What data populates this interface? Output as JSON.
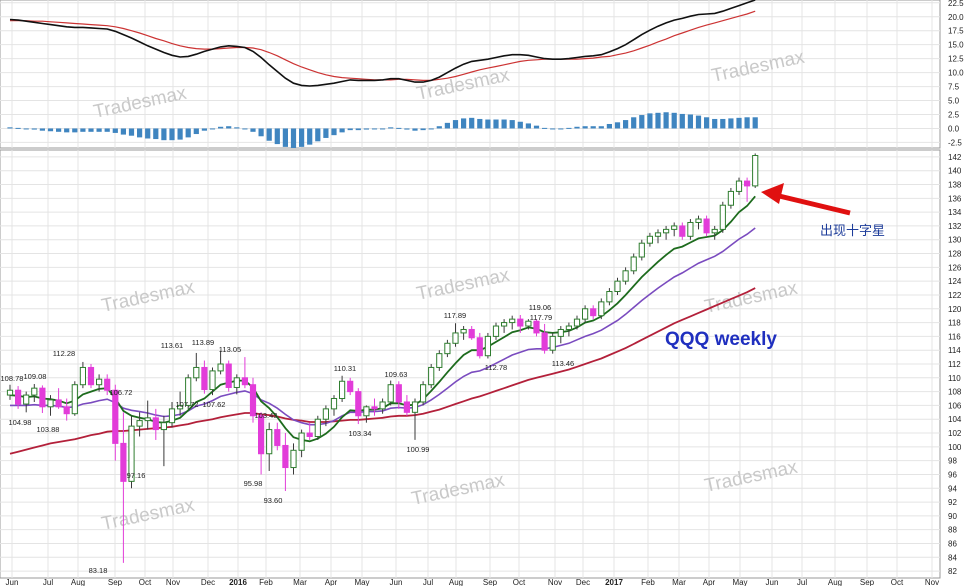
{
  "chart_data": {
    "type": "candlestick",
    "title": "QQQ weekly",
    "annotation": "出现十字星",
    "watermark": "Tradesmax",
    "colors": {
      "up_candle": "#2f7d2f",
      "down_candle": "#e23cd9",
      "ma_short": "#1d6b1d",
      "ma_mid": "#7a4bbf",
      "ma_long": "#b3203a",
      "macd_line": "#111111",
      "signal_line": "#cc3333",
      "histogram": "#3f85c0",
      "arrow": "#e01010"
    },
    "x_tick_labels": [
      "Jun",
      "Jul",
      "Aug",
      "Sep",
      "Oct",
      "Nov",
      "Dec",
      "2016",
      "Feb",
      "Mar",
      "Apr",
      "May",
      "Jun",
      "Jul",
      "Aug",
      "Sep",
      "Oct",
      "Nov",
      "Dec",
      "2017",
      "Feb",
      "Mar",
      "Apr",
      "May",
      "Jun",
      "Jul",
      "Aug",
      "Sep",
      "Oct",
      "Nov"
    ],
    "price_axis": {
      "ylim": [
        81,
        143
      ],
      "ticks": [
        82,
        84,
        86,
        88,
        90,
        92,
        94,
        96,
        98,
        100,
        102,
        104,
        106,
        108,
        110,
        112,
        114,
        116,
        118,
        120,
        122,
        124,
        126,
        128,
        130,
        132,
        134,
        136,
        138,
        140,
        142
      ]
    },
    "indicator_axis": {
      "ylim": [
        -3.5,
        23
      ],
      "ticks": [
        -2.5,
        0.0,
        2.5,
        5.0,
        7.5,
        10.0,
        12.5,
        15.0,
        17.5,
        20.0,
        22.5
      ]
    },
    "price_labels": [
      "108.78",
      "109.08",
      "104.98",
      "103.88",
      "112.28",
      "106.72",
      "97.16",
      "83.18",
      "113.61",
      "113.89",
      "113.05",
      "107.72",
      "107.62",
      "103.43",
      "95.98",
      "93.60",
      "110.31",
      "109.63",
      "103.34",
      "100.99",
      "117.89",
      "112.78",
      "119.06",
      "117.79",
      "113.46"
    ],
    "candles": [
      {
        "o": 107.5,
        "h": 109.0,
        "l": 106.8,
        "c": 108.2
      },
      {
        "o": 108.2,
        "h": 108.8,
        "l": 105.5,
        "c": 106.2
      },
      {
        "o": 106.2,
        "h": 108.0,
        "l": 105.0,
        "c": 107.5
      },
      {
        "o": 107.5,
        "h": 109.1,
        "l": 106.5,
        "c": 108.5
      },
      {
        "o": 108.5,
        "h": 108.9,
        "l": 104.9,
        "c": 105.8
      },
      {
        "o": 105.8,
        "h": 107.5,
        "l": 104.5,
        "c": 106.8
      },
      {
        "o": 106.8,
        "h": 108.5,
        "l": 105.5,
        "c": 105.8
      },
      {
        "o": 105.8,
        "h": 107.0,
        "l": 103.8,
        "c": 104.8
      },
      {
        "o": 104.8,
        "h": 109.5,
        "l": 104.5,
        "c": 109.0
      },
      {
        "o": 109.0,
        "h": 112.3,
        "l": 108.5,
        "c": 111.5
      },
      {
        "o": 111.5,
        "h": 112.0,
        "l": 108.5,
        "c": 109.0
      },
      {
        "o": 109.0,
        "h": 110.5,
        "l": 108.0,
        "c": 109.8
      },
      {
        "o": 109.8,
        "h": 110.5,
        "l": 107.5,
        "c": 108.2
      },
      {
        "o": 108.2,
        "h": 109.0,
        "l": 98.0,
        "c": 100.5
      },
      {
        "o": 100.5,
        "h": 105.0,
        "l": 83.2,
        "c": 95.0
      },
      {
        "o": 95.0,
        "h": 104.5,
        "l": 94.0,
        "c": 103.0
      },
      {
        "o": 103.0,
        "h": 105.0,
        "l": 101.5,
        "c": 103.8
      },
      {
        "o": 103.8,
        "h": 106.7,
        "l": 102.5,
        "c": 104.2
      },
      {
        "o": 104.2,
        "h": 105.5,
        "l": 101.0,
        "c": 102.5
      },
      {
        "o": 102.5,
        "h": 104.5,
        "l": 97.2,
        "c": 103.5
      },
      {
        "o": 103.5,
        "h": 106.5,
        "l": 102.8,
        "c": 105.5
      },
      {
        "o": 105.5,
        "h": 108.0,
        "l": 104.5,
        "c": 106.0
      },
      {
        "o": 106.0,
        "h": 110.5,
        "l": 105.5,
        "c": 110.0
      },
      {
        "o": 110.0,
        "h": 113.6,
        "l": 109.5,
        "c": 111.5
      },
      {
        "o": 111.5,
        "h": 112.5,
        "l": 107.7,
        "c": 108.3
      },
      {
        "o": 108.3,
        "h": 111.5,
        "l": 107.5,
        "c": 111.0
      },
      {
        "o": 111.0,
        "h": 113.9,
        "l": 110.5,
        "c": 112.0
      },
      {
        "o": 112.0,
        "h": 112.5,
        "l": 108.0,
        "c": 108.6
      },
      {
        "o": 108.6,
        "h": 110.5,
        "l": 107.6,
        "c": 110.0
      },
      {
        "o": 110.0,
        "h": 113.0,
        "l": 108.5,
        "c": 109.0
      },
      {
        "o": 109.0,
        "h": 110.0,
        "l": 103.5,
        "c": 104.5
      },
      {
        "o": 104.5,
        "h": 105.0,
        "l": 96.0,
        "c": 99.0
      },
      {
        "o": 99.0,
        "h": 103.5,
        "l": 96.5,
        "c": 102.5
      },
      {
        "o": 102.5,
        "h": 103.5,
        "l": 99.5,
        "c": 100.2
      },
      {
        "o": 100.2,
        "h": 102.0,
        "l": 93.6,
        "c": 97.0
      },
      {
        "o": 97.0,
        "h": 100.5,
        "l": 96.0,
        "c": 99.5
      },
      {
        "o": 99.5,
        "h": 102.5,
        "l": 98.5,
        "c": 102.0
      },
      {
        "o": 102.0,
        "h": 103.5,
        "l": 101.0,
        "c": 101.5
      },
      {
        "o": 101.5,
        "h": 104.5,
        "l": 101.0,
        "c": 104.0
      },
      {
        "o": 104.0,
        "h": 106.0,
        "l": 103.0,
        "c": 105.5
      },
      {
        "o": 105.5,
        "h": 107.5,
        "l": 104.5,
        "c": 107.0
      },
      {
        "o": 107.0,
        "h": 110.3,
        "l": 106.5,
        "c": 109.5
      },
      {
        "o": 109.5,
        "h": 110.0,
        "l": 107.5,
        "c": 108.0
      },
      {
        "o": 108.0,
        "h": 108.5,
        "l": 103.3,
        "c": 104.5
      },
      {
        "o": 104.5,
        "h": 106.0,
        "l": 103.5,
        "c": 105.8
      },
      {
        "o": 105.8,
        "h": 107.0,
        "l": 104.5,
        "c": 105.5
      },
      {
        "o": 105.5,
        "h": 107.0,
        "l": 104.8,
        "c": 106.5
      },
      {
        "o": 106.5,
        "h": 109.6,
        "l": 106.0,
        "c": 109.0
      },
      {
        "o": 109.0,
        "h": 109.5,
        "l": 105.5,
        "c": 106.5
      },
      {
        "o": 106.5,
        "h": 107.5,
        "l": 104.5,
        "c": 105.0
      },
      {
        "o": 105.0,
        "h": 107.0,
        "l": 101.0,
        "c": 106.5
      },
      {
        "o": 106.5,
        "h": 109.5,
        "l": 106.0,
        "c": 109.0
      },
      {
        "o": 109.0,
        "h": 112.0,
        "l": 108.5,
        "c": 111.5
      },
      {
        "o": 111.5,
        "h": 114.0,
        "l": 111.0,
        "c": 113.5
      },
      {
        "o": 113.5,
        "h": 115.5,
        "l": 113.0,
        "c": 115.0
      },
      {
        "o": 115.0,
        "h": 117.9,
        "l": 114.5,
        "c": 116.5
      },
      {
        "o": 116.5,
        "h": 117.5,
        "l": 115.5,
        "c": 117.0
      },
      {
        "o": 117.0,
        "h": 117.5,
        "l": 115.5,
        "c": 115.8
      },
      {
        "o": 115.8,
        "h": 116.5,
        "l": 112.8,
        "c": 113.2
      },
      {
        "o": 113.2,
        "h": 116.5,
        "l": 112.8,
        "c": 116.0
      },
      {
        "o": 116.0,
        "h": 118.0,
        "l": 115.5,
        "c": 117.5
      },
      {
        "o": 117.5,
        "h": 118.5,
        "l": 116.5,
        "c": 118.0
      },
      {
        "o": 118.0,
        "h": 119.0,
        "l": 117.0,
        "c": 118.5
      },
      {
        "o": 118.5,
        "h": 119.1,
        "l": 116.5,
        "c": 117.5
      },
      {
        "o": 117.5,
        "h": 118.5,
        "l": 117.0,
        "c": 118.2
      },
      {
        "o": 118.2,
        "h": 118.5,
        "l": 116.0,
        "c": 116.5
      },
      {
        "o": 116.5,
        "h": 117.8,
        "l": 113.5,
        "c": 114.0
      },
      {
        "o": 114.0,
        "h": 116.5,
        "l": 113.5,
        "c": 116.0
      },
      {
        "o": 116.0,
        "h": 117.5,
        "l": 115.0,
        "c": 117.0
      },
      {
        "o": 117.0,
        "h": 118.0,
        "l": 116.0,
        "c": 117.5
      },
      {
        "o": 117.5,
        "h": 119.0,
        "l": 117.0,
        "c": 118.5
      },
      {
        "o": 118.5,
        "h": 120.5,
        "l": 118.0,
        "c": 120.0
      },
      {
        "o": 120.0,
        "h": 120.5,
        "l": 118.5,
        "c": 119.0
      },
      {
        "o": 119.0,
        "h": 121.5,
        "l": 118.5,
        "c": 121.0
      },
      {
        "o": 121.0,
        "h": 123.0,
        "l": 120.5,
        "c": 122.5
      },
      {
        "o": 122.5,
        "h": 124.5,
        "l": 122.0,
        "c": 124.0
      },
      {
        "o": 124.0,
        "h": 126.0,
        "l": 123.5,
        "c": 125.5
      },
      {
        "o": 125.5,
        "h": 128.0,
        "l": 125.0,
        "c": 127.5
      },
      {
        "o": 127.5,
        "h": 130.0,
        "l": 127.0,
        "c": 129.5
      },
      {
        "o": 129.5,
        "h": 131.0,
        "l": 129.0,
        "c": 130.5
      },
      {
        "o": 130.5,
        "h": 131.5,
        "l": 129.5,
        "c": 131.0
      },
      {
        "o": 131.0,
        "h": 132.0,
        "l": 130.0,
        "c": 131.5
      },
      {
        "o": 131.5,
        "h": 132.5,
        "l": 130.5,
        "c": 132.0
      },
      {
        "o": 132.0,
        "h": 132.5,
        "l": 130.0,
        "c": 130.5
      },
      {
        "o": 130.5,
        "h": 133.0,
        "l": 130.0,
        "c": 132.5
      },
      {
        "o": 132.5,
        "h": 133.5,
        "l": 131.5,
        "c": 133.0
      },
      {
        "o": 133.0,
        "h": 133.5,
        "l": 130.5,
        "c": 131.0
      },
      {
        "o": 131.0,
        "h": 132.0,
        "l": 130.0,
        "c": 131.5
      },
      {
        "o": 131.5,
        "h": 135.5,
        "l": 131.0,
        "c": 135.0
      },
      {
        "o": 135.0,
        "h": 137.5,
        "l": 134.5,
        "c": 137.0
      },
      {
        "o": 137.0,
        "h": 139.0,
        "l": 136.5,
        "c": 138.5
      },
      {
        "o": 138.5,
        "h": 139.0,
        "l": 135.5,
        "c": 137.8
      },
      {
        "o": 137.8,
        "h": 142.5,
        "l": 137.5,
        "c": 142.2
      }
    ],
    "ma_short": [
      107.5,
      107.4,
      107.2,
      107.3,
      107.0,
      106.9,
      106.7,
      106.3,
      106.7,
      107.6,
      108.0,
      108.4,
      108.5,
      107.0,
      105.2,
      104.5,
      104.2,
      104.0,
      103.6,
      103.5,
      103.8,
      104.2,
      105.3,
      106.5,
      107.0,
      108.0,
      109.0,
      109.3,
      109.6,
      109.6,
      108.6,
      106.6,
      105.6,
      104.3,
      102.7,
      101.4,
      101.0,
      100.8,
      101.2,
      101.9,
      102.9,
      104.3,
      105.3,
      105.2,
      105.4,
      105.4,
      105.6,
      106.3,
      106.3,
      106.0,
      106.1,
      106.9,
      108.1,
      109.4,
      110.8,
      112.1,
      113.3,
      114.0,
      114.0,
      114.5,
      115.2,
      115.9,
      116.6,
      116.9,
      117.3,
      117.1,
      116.6,
      116.5,
      116.6,
      116.8,
      117.3,
      118.0,
      118.3,
      118.9,
      119.8,
      120.8,
      122.0,
      123.3,
      124.6,
      125.7,
      126.8,
      127.8,
      128.7,
      129.0,
      129.6,
      130.2,
      130.4,
      130.6,
      131.4,
      132.6,
      134.0,
      134.9,
      136.3
    ],
    "ma_mid": [
      106.0,
      106.0,
      106.0,
      106.1,
      106.0,
      106.0,
      105.9,
      105.7,
      105.8,
      106.2,
      106.4,
      106.7,
      106.9,
      106.4,
      105.6,
      105.3,
      105.1,
      104.9,
      104.6,
      104.4,
      104.5,
      104.7,
      105.2,
      105.9,
      106.2,
      106.7,
      107.3,
      107.6,
      107.9,
      108.1,
      107.7,
      106.8,
      106.3,
      105.6,
      104.7,
      103.9,
      103.5,
      103.2,
      103.2,
      103.4,
      103.8,
      104.5,
      105.0,
      105.0,
      105.1,
      105.1,
      105.2,
      105.6,
      105.7,
      105.6,
      105.7,
      106.1,
      106.8,
      107.6,
      108.5,
      109.4,
      110.2,
      110.8,
      111.0,
      111.5,
      112.1,
      112.7,
      113.3,
      113.7,
      114.1,
      114.2,
      114.2,
      114.4,
      114.7,
      115.0,
      115.5,
      116.0,
      116.4,
      116.9,
      117.6,
      118.3,
      119.2,
      120.2,
      121.2,
      122.1,
      123.0,
      123.8,
      124.6,
      125.2,
      125.9,
      126.6,
      127.1,
      127.6,
      128.3,
      129.2,
      130.1,
      130.8,
      131.7
    ],
    "ma_long": [
      99.0,
      99.3,
      99.6,
      99.9,
      100.2,
      100.5,
      100.7,
      100.9,
      101.1,
      101.4,
      101.7,
      101.9,
      102.2,
      102.3,
      102.3,
      102.4,
      102.5,
      102.6,
      102.7,
      102.8,
      102.9,
      103.1,
      103.3,
      103.6,
      103.8,
      104.0,
      104.3,
      104.5,
      104.7,
      104.9,
      104.9,
      104.7,
      104.6,
      104.4,
      104.1,
      103.9,
      103.8,
      103.6,
      103.6,
      103.6,
      103.7,
      103.8,
      103.9,
      103.9,
      104.0,
      104.1,
      104.2,
      104.4,
      104.5,
      104.5,
      104.6,
      104.8,
      105.1,
      105.4,
      105.8,
      106.2,
      106.6,
      107.0,
      107.3,
      107.7,
      108.1,
      108.5,
      108.9,
      109.3,
      109.7,
      110.0,
      110.3,
      110.6,
      110.9,
      111.2,
      111.6,
      112.0,
      112.4,
      112.8,
      113.3,
      113.8,
      114.3,
      114.9,
      115.5,
      116.1,
      116.7,
      117.3,
      117.9,
      118.4,
      118.9,
      119.4,
      119.9,
      120.4,
      120.9,
      121.4,
      121.9,
      122.4,
      123.0
    ],
    "macd_line": [
      19.5,
      19.4,
      19.2,
      19.0,
      18.8,
      18.6,
      18.4,
      18.2,
      18.1,
      18.1,
      18.0,
      17.9,
      17.8,
      17.4,
      16.8,
      16.2,
      15.5,
      14.8,
      14.2,
      13.6,
      13.1,
      12.8,
      12.9,
      13.3,
      13.8,
      14.2,
      14.6,
      14.8,
      14.7,
      14.5,
      13.8,
      12.7,
      11.4,
      10.2,
      9.0,
      8.1,
      7.7,
      7.6,
      7.7,
      7.9,
      8.1,
      8.4,
      8.7,
      8.6,
      8.6,
      8.6,
      8.7,
      8.9,
      8.9,
      8.6,
      8.3,
      8.3,
      8.6,
      9.2,
      10.0,
      10.8,
      11.5,
      12.0,
      12.2,
      12.4,
      12.7,
      13.0,
      13.2,
      13.2,
      13.1,
      12.8,
      12.5,
      12.4,
      12.4,
      12.5,
      12.7,
      12.9,
      13.0,
      13.2,
      13.7,
      14.3,
      15.0,
      15.9,
      16.8,
      17.6,
      18.3,
      18.9,
      19.4,
      19.7,
      20.1,
      20.4,
      20.5,
      20.6,
      21.0,
      21.5,
      22.0,
      22.5,
      23.0
    ],
    "signal_line": [
      19.3,
      19.3,
      19.3,
      19.2,
      19.2,
      19.1,
      19.0,
      18.9,
      18.8,
      18.7,
      18.6,
      18.5,
      18.4,
      18.2,
      17.9,
      17.5,
      17.1,
      16.6,
      16.1,
      15.7,
      15.2,
      14.8,
      14.5,
      14.3,
      14.2,
      14.2,
      14.3,
      14.4,
      14.5,
      14.5,
      14.4,
      14.1,
      13.6,
      13.0,
      12.3,
      11.6,
      11.0,
      10.5,
      10.0,
      9.6,
      9.3,
      9.1,
      9.0,
      8.9,
      8.8,
      8.7,
      8.7,
      8.7,
      8.8,
      8.8,
      8.7,
      8.6,
      8.6,
      8.8,
      9.0,
      9.3,
      9.7,
      10.1,
      10.5,
      10.8,
      11.1,
      11.4,
      11.7,
      12.0,
      12.2,
      12.3,
      12.4,
      12.4,
      12.4,
      12.4,
      12.4,
      12.5,
      12.6,
      12.8,
      12.9,
      13.2,
      13.5,
      13.9,
      14.4,
      14.9,
      15.5,
      16.0,
      16.6,
      17.1,
      17.6,
      18.1,
      18.5,
      18.9,
      19.3,
      19.7,
      20.1,
      20.5,
      21.0
    ],
    "histogram": [
      0.2,
      0.1,
      -0.1,
      -0.2,
      -0.4,
      -0.5,
      -0.6,
      -0.7,
      -0.7,
      -0.6,
      -0.6,
      -0.6,
      -0.6,
      -0.8,
      -1.1,
      -1.3,
      -1.6,
      -1.8,
      -1.9,
      -2.1,
      -2.1,
      -2.0,
      -1.6,
      -1.0,
      -0.4,
      0.0,
      0.3,
      0.4,
      0.2,
      0.0,
      -0.6,
      -1.4,
      -2.2,
      -2.8,
      -3.3,
      -3.5,
      -3.3,
      -2.9,
      -2.3,
      -1.7,
      -1.2,
      -0.7,
      -0.3,
      -0.3,
      -0.2,
      -0.1,
      0.0,
      0.2,
      0.1,
      -0.2,
      -0.4,
      -0.3,
      0.0,
      0.4,
      1.0,
      1.5,
      1.8,
      1.9,
      1.7,
      1.6,
      1.6,
      1.6,
      1.5,
      1.2,
      0.9,
      0.5,
      0.1,
      0.0,
      0.0,
      0.1,
      0.3,
      0.4,
      0.4,
      0.4,
      0.8,
      1.1,
      1.5,
      2.0,
      2.4,
      2.7,
      2.8,
      2.9,
      2.8,
      2.6,
      2.5,
      2.3,
      2.0,
      1.7,
      1.7,
      1.8,
      1.9,
      2.0,
      2.0
    ]
  }
}
